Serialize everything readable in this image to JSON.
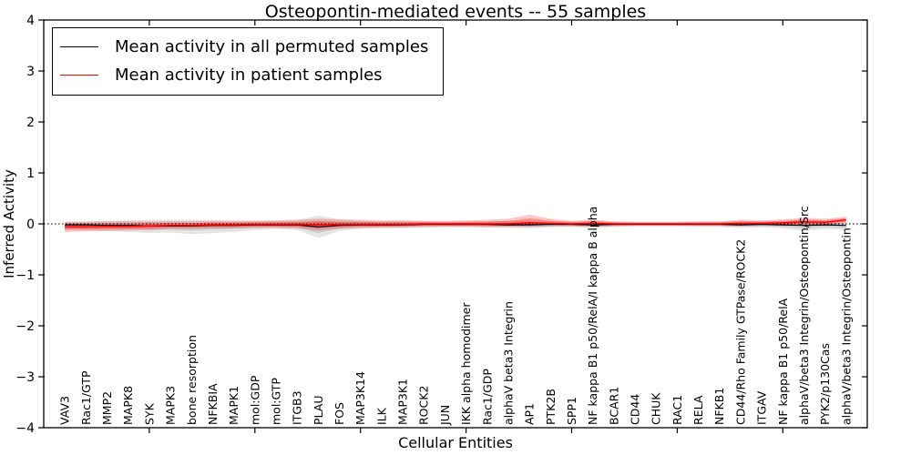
{
  "title": "Osteopontin-mediated events -- 55 samples",
  "legend": [
    {
      "label": "Mean activity in all permuted samples",
      "color": "#000000"
    },
    {
      "label": "Mean activity in patient samples",
      "color": "#ff0000"
    }
  ],
  "colors": {
    "permuted_line": "#000000",
    "permuted_band": "rgba(0,0,0,0.10)",
    "patient_line": "#ff0000",
    "patient_band": "rgba(255,0,0,0.22)",
    "zero_line": "#000000",
    "frame": "#000000"
  },
  "chart_data": {
    "type": "line",
    "title": "Osteopontin-mediated events -- 55 samples",
    "xlabel": "Cellular Entities",
    "ylabel": "Inferred Activity",
    "ylim": [
      -4,
      4
    ],
    "xlim": [
      0,
      39
    ],
    "yticks": [
      -4,
      -3,
      -2,
      -1,
      0,
      1,
      2,
      3,
      4
    ],
    "ytick_labels": [
      "−4",
      "−3",
      "−2",
      "−1",
      "0",
      "1",
      "2",
      "3",
      "4"
    ],
    "xticks_major": [
      5,
      10,
      15,
      20,
      25,
      30,
      35
    ],
    "grid": false,
    "zero_line": true,
    "legend_position": "upper left",
    "categories": [
      "VAV3",
      "Rac1/GTP",
      "MMP2",
      "MAPK8",
      "SYK",
      "MAPK3",
      "bone resorption",
      "NFKBIA",
      "MAPK1",
      "mol:GDP",
      "mol:GTP",
      "ITGB3",
      "PLAU",
      "FOS",
      "MAP3K14",
      "ILK",
      "MAP3K1",
      "ROCK2",
      "JUN",
      "IKK alpha homodimer",
      "Rac1/GDP",
      "alphaV beta3 Integrin",
      "AP1",
      "PTK2B",
      "SPP1",
      "NF kappa B1 p50/RelA/I kappa B alpha",
      "BCAR1",
      "CD44",
      "CHUK",
      "RAC1",
      "RELA",
      "NFKB1",
      "CD44/Rho Family GTPase/ROCK2",
      "ITGAV",
      "NF kappa B1 p50/RelA",
      "alphaV/beta3 Integrin/Osteopontin/Src",
      "PYK2/p130Cas",
      "alphaV/beta3 Integrin/Osteopontin"
    ],
    "series": [
      {
        "name": "Mean activity in all permuted samples",
        "color": "#000000",
        "values": [
          -0.02,
          -0.02,
          -0.03,
          -0.03,
          -0.04,
          -0.04,
          -0.04,
          -0.03,
          -0.03,
          -0.02,
          -0.02,
          -0.02,
          -0.06,
          -0.03,
          -0.02,
          -0.02,
          -0.02,
          -0.01,
          -0.01,
          -0.01,
          -0.01,
          -0.02,
          -0.02,
          -0.01,
          -0.01,
          -0.02,
          -0.01,
          -0.01,
          -0.01,
          -0.01,
          -0.01,
          -0.01,
          -0.02,
          -0.01,
          -0.02,
          -0.03,
          -0.02,
          -0.03
        ],
        "band_upper": [
          0.04,
          0.05,
          0.06,
          0.07,
          0.08,
          0.08,
          0.08,
          0.07,
          0.06,
          0.06,
          0.06,
          0.07,
          0.16,
          0.09,
          0.06,
          0.05,
          0.06,
          0.05,
          0.04,
          0.04,
          0.05,
          0.06,
          0.06,
          0.05,
          0.04,
          0.06,
          0.04,
          0.03,
          0.03,
          0.03,
          0.04,
          0.04,
          0.06,
          0.05,
          0.06,
          0.07,
          0.06,
          0.05
        ],
        "band_lower": [
          -0.1,
          -0.12,
          -0.14,
          -0.16,
          -0.18,
          -0.17,
          -0.2,
          -0.18,
          -0.16,
          -0.12,
          -0.1,
          -0.12,
          -0.28,
          -0.14,
          -0.1,
          -0.08,
          -0.09,
          -0.08,
          -0.06,
          -0.06,
          -0.07,
          -0.08,
          -0.09,
          -0.07,
          -0.06,
          -0.08,
          -0.06,
          -0.05,
          -0.05,
          -0.05,
          -0.06,
          -0.06,
          -0.08,
          -0.07,
          -0.09,
          -0.14,
          -0.1,
          -0.12
        ]
      },
      {
        "name": "Mean activity in patient samples",
        "color": "#ff0000",
        "values": [
          -0.06,
          -0.06,
          -0.05,
          -0.05,
          -0.04,
          -0.03,
          -0.03,
          -0.02,
          -0.02,
          -0.01,
          -0.01,
          -0.01,
          -0.02,
          -0.01,
          -0.01,
          -0.01,
          -0.01,
          0,
          0,
          0,
          0,
          0,
          0.02,
          0.01,
          0,
          0.01,
          0,
          0,
          0,
          0,
          0,
          0,
          0.01,
          0.01,
          0.02,
          0.04,
          0.03,
          0.08
        ],
        "band_upper": [
          0.04,
          0.04,
          0.05,
          0.05,
          0.05,
          0.05,
          0.05,
          0.06,
          0.06,
          0.06,
          0.07,
          0.08,
          0.1,
          0.09,
          0.08,
          0.07,
          0.07,
          0.06,
          0.06,
          0.07,
          0.08,
          0.1,
          0.18,
          0.1,
          0.06,
          0.08,
          0.05,
          0.04,
          0.04,
          0.04,
          0.05,
          0.05,
          0.08,
          0.07,
          0.09,
          0.12,
          0.1,
          0.14
        ],
        "band_lower": [
          -0.16,
          -0.15,
          -0.14,
          -0.13,
          -0.12,
          -0.1,
          -0.1,
          -0.09,
          -0.09,
          -0.08,
          -0.08,
          -0.09,
          -0.13,
          -0.1,
          -0.08,
          -0.08,
          -0.07,
          -0.06,
          -0.06,
          -0.06,
          -0.07,
          -0.06,
          -0.06,
          -0.05,
          -0.05,
          -0.06,
          -0.05,
          -0.04,
          -0.04,
          -0.04,
          -0.04,
          -0.04,
          -0.05,
          -0.04,
          -0.04,
          -0.03,
          -0.03,
          0.02
        ]
      }
    ]
  }
}
